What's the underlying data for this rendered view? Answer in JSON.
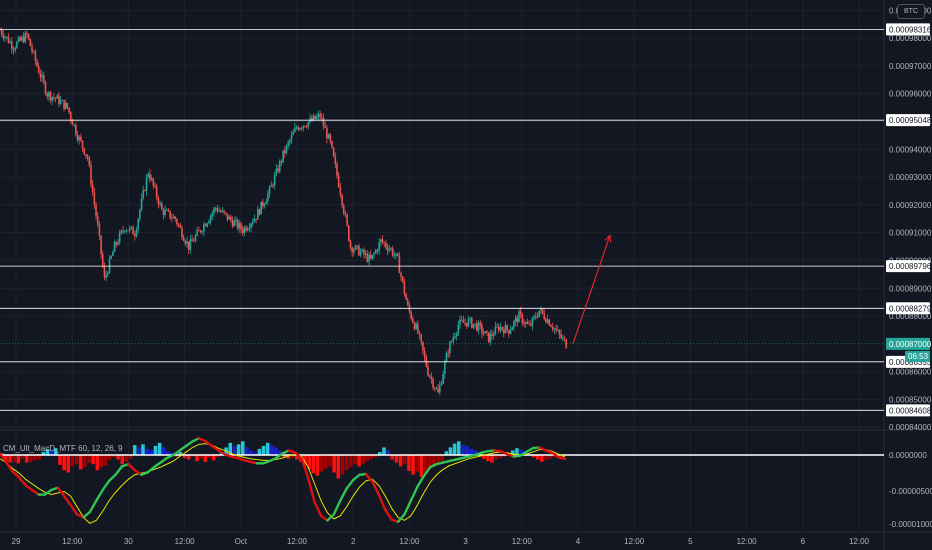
{
  "currency_button": "BTC",
  "indicator_title": "CM_Ult_MacD_MTF 60, 12, 26, 9",
  "price_axis": {
    "ticks": [
      "0.00099000",
      "0.00098000",
      "0.00097000",
      "0.00096000",
      "0.00095000",
      "0.00094000",
      "0.00093000",
      "0.00092000",
      "0.00091000",
      "0.00090000",
      "0.00089000",
      "0.00088000",
      "0.00086000",
      "0.00085000",
      "0.00084000"
    ],
    "horizontal_lines": [
      "0.00098316",
      "0.00095048",
      "0.00089796",
      "0.00088279",
      "0.00086353",
      "0.00084608"
    ],
    "current_price": "0.00087000",
    "countdown": "06:53"
  },
  "indicator_axis": {
    "ticks": [
      "0.0000000",
      "-0.00000500",
      "-0.00001000"
    ]
  },
  "time_axis": {
    "labels": [
      "29",
      "12:00",
      "30",
      "12:00",
      "Oct",
      "12:00",
      "2",
      "12:00",
      "3",
      "12:00",
      "4",
      "12:00",
      "5",
      "12:00",
      "6",
      "12:00"
    ]
  },
  "colors": {
    "background": "#131722",
    "up_candle": "#26a69a",
    "down_candle": "#ef5350",
    "level_line": "#ffffff",
    "arrow": "#e0262d",
    "hist_up_strong": "#1a1fd6",
    "hist_up_weak": "#26c6da",
    "hist_down_strong": "#ff1010",
    "hist_down_weak": "#a30000",
    "macd_up": "#2dc653",
    "macd_down": "#e01010",
    "signal": "#e6e600"
  },
  "chart_data": {
    "type": "candlestick",
    "symbol_quote": "BTC",
    "ylim": [
      0.000839,
      0.000993
    ],
    "close_path": [
      [
        0,
        0.000983
      ],
      [
        4,
        0.000977
      ],
      [
        8,
        0.000981
      ],
      [
        11,
        0.00097
      ],
      [
        14,
        0.00096
      ],
      [
        17,
        0.000958
      ],
      [
        20,
        0.000955
      ],
      [
        23,
        0.000945
      ],
      [
        26,
        0.000937
      ],
      [
        29,
        0.000912
      ],
      [
        31,
        0.000893
      ],
      [
        34,
        0.000905
      ],
      [
        37,
        0.000912
      ],
      [
        40,
        0.00091
      ],
      [
        44,
        0.000932
      ],
      [
        48,
        0.000918
      ],
      [
        52,
        0.000915
      ],
      [
        56,
        0.000905
      ],
      [
        60,
        0.000912
      ],
      [
        64,
        0.000919
      ],
      [
        68,
        0.000915
      ],
      [
        72,
        0.000911
      ],
      [
        76,
        0.000916
      ],
      [
        80,
        0.000925
      ],
      [
        84,
        0.000938
      ],
      [
        88,
        0.000948
      ],
      [
        92,
        0.00095
      ],
      [
        95,
        0.000952
      ],
      [
        98,
        0.000942
      ],
      [
        101,
        0.000925
      ],
      [
        104,
        0.000905
      ],
      [
        107,
        0.000903
      ],
      [
        110,
        0.0009
      ],
      [
        113,
        0.000907
      ],
      [
        116,
        0.000904
      ],
      [
        118,
        0.0009
      ],
      [
        121,
        0.000883
      ],
      [
        124,
        0.000874
      ],
      [
        127,
        0.00086
      ],
      [
        130,
        0.000852
      ],
      [
        133,
        0.000868
      ],
      [
        136,
        0.000877
      ],
      [
        139,
        0.000878
      ],
      [
        142,
        0.000876
      ],
      [
        145,
        0.000872
      ],
      [
        148,
        0.000876
      ],
      [
        151,
        0.000875
      ],
      [
        154,
        0.00088
      ],
      [
        157,
        0.000876
      ],
      [
        160,
        0.000882
      ],
      [
        163,
        0.000878
      ],
      [
        166,
        0.000873
      ],
      [
        168,
        0.00087
      ]
    ],
    "projection_arrow": {
      "from": [
        170,
        0.00087
      ],
      "to": [
        181,
        0.000909
      ]
    },
    "macd_hist": [
      0.2,
      -0.8,
      -1.0,
      -0.9,
      -1.1,
      -0.5,
      -1.0,
      -0.9,
      -0.7,
      -0.6,
      0.4,
      0.8,
      0.5,
      0.9,
      -1.3,
      -2.0,
      -2.3,
      -1.5,
      -1.2,
      -1.9,
      -1.6,
      -1.0,
      -1.2,
      -2.0,
      -1.6,
      -1.4,
      -0.6,
      -0.3,
      -0.6,
      -1.2,
      -0.9,
      -0.5,
      1.3,
      1.0,
      1.4,
      0.8,
      0.6,
      1.2,
      1.6,
      1.0,
      0.5,
      0.3,
      -0.2,
      0.4,
      -0.4,
      -0.6,
      -0.2,
      -0.8,
      -0.5,
      -0.9,
      -0.4,
      -0.7,
      -0.3,
      0.4,
      1.0,
      1.6,
      1.2,
      1.4,
      1.8,
      1.0,
      0.6,
      0.3,
      0.8,
      1.2,
      1.6,
      1.3,
      1.0,
      0.6,
      -0.3,
      -0.5,
      -0.4,
      -0.6,
      -0.9,
      -1.4,
      -1.9,
      -2.4,
      -2.7,
      -2.2,
      -1.8,
      -1.5,
      -2.3,
      -3.1,
      -2.6,
      -2.0,
      -1.6,
      -1.2,
      -1.5,
      -1.2,
      -0.8,
      -0.5,
      -0.3,
      0.4,
      1.0,
      0.6,
      -0.6,
      -1.0,
      -1.5,
      -1.2,
      -2.1,
      -2.6,
      -2.2,
      -2.9,
      -2.4,
      -1.9,
      -1.5,
      -1.2,
      -0.8,
      0.5,
      1.0,
      1.5,
      1.8,
      1.3,
      1.2,
      0.8,
      0.6,
      0.3,
      -0.5,
      -0.8,
      -1.0,
      -0.6,
      -0.4,
      -0.2,
      0.3,
      0.6,
      0.9,
      0.7,
      0.5,
      0.2,
      -0.3,
      -0.6,
      -0.9,
      -0.7,
      -0.5,
      -0.3,
      -0.2,
      -0.3
    ],
    "macd_line": [
      0.2,
      -1.0,
      -2.2,
      -3.0,
      -4.0,
      -4.6,
      -5.2,
      -5.2,
      -4.6,
      -4.3,
      -5.4,
      -6.6,
      -7.8,
      -8.2,
      -7.5,
      -6.0,
      -4.6,
      -3.4,
      -2.6,
      -1.5,
      -1.2,
      -2.0,
      -2.6,
      -2.3,
      -1.6,
      -1.0,
      -0.4,
      0.0,
      0.6,
      1.2,
      1.8,
      2.2,
      1.8,
      1.2,
      0.6,
      0.1,
      -0.2,
      -0.4,
      -0.7,
      -0.9,
      -1.1,
      -1.1,
      -0.8,
      -0.4,
      0.2,
      0.6,
      0.3,
      -0.5,
      -3.0,
      -6.2,
      -8.0,
      -8.6,
      -7.8,
      -6.0,
      -4.4,
      -3.3,
      -2.6,
      -2.5,
      -3.5,
      -5.2,
      -7.2,
      -8.5,
      -8.8,
      -7.8,
      -6.0,
      -4.2,
      -2.8,
      -1.6,
      -1.2,
      -1.0,
      -0.8,
      -0.6,
      -0.4,
      -0.2,
      0.0,
      0.3,
      0.5,
      0.6,
      0.5,
      0.1,
      -0.2,
      -0.1,
      0.4,
      0.9,
      1.0,
      0.6,
      0.3,
      -0.3,
      -0.5
    ],
    "signal_line": [
      -0.5,
      -1.0,
      -1.8,
      -2.4,
      -3.2,
      -3.8,
      -4.4,
      -4.9,
      -5.2,
      -5.0,
      -4.8,
      -5.4,
      -6.8,
      -8.2,
      -9.0,
      -8.6,
      -7.4,
      -6.0,
      -4.9,
      -4.0,
      -3.2,
      -2.6,
      -2.4,
      -2.2,
      -1.9,
      -1.6,
      -1.2,
      -0.8,
      -0.2,
      0.4,
      1.0,
      1.4,
      1.5,
      1.3,
      0.9,
      0.6,
      0.2,
      -0.1,
      -0.3,
      -0.5,
      -0.6,
      -0.7,
      -0.7,
      -0.6,
      -0.4,
      -0.1,
      0.1,
      -0.2,
      -1.6,
      -3.8,
      -6.0,
      -7.6,
      -8.4,
      -8.0,
      -6.8,
      -5.4,
      -4.2,
      -3.4,
      -3.2,
      -4.0,
      -5.4,
      -7.0,
      -8.2,
      -8.6,
      -8.0,
      -6.6,
      -5.0,
      -3.6,
      -2.6,
      -1.9,
      -1.4,
      -1.1,
      -0.8,
      -0.5,
      -0.3,
      -0.1,
      0.1,
      0.3,
      0.4,
      0.3,
      0.1,
      0.0,
      0.1,
      0.4,
      0.7,
      0.7,
      0.5,
      0.1,
      -0.2
    ]
  }
}
